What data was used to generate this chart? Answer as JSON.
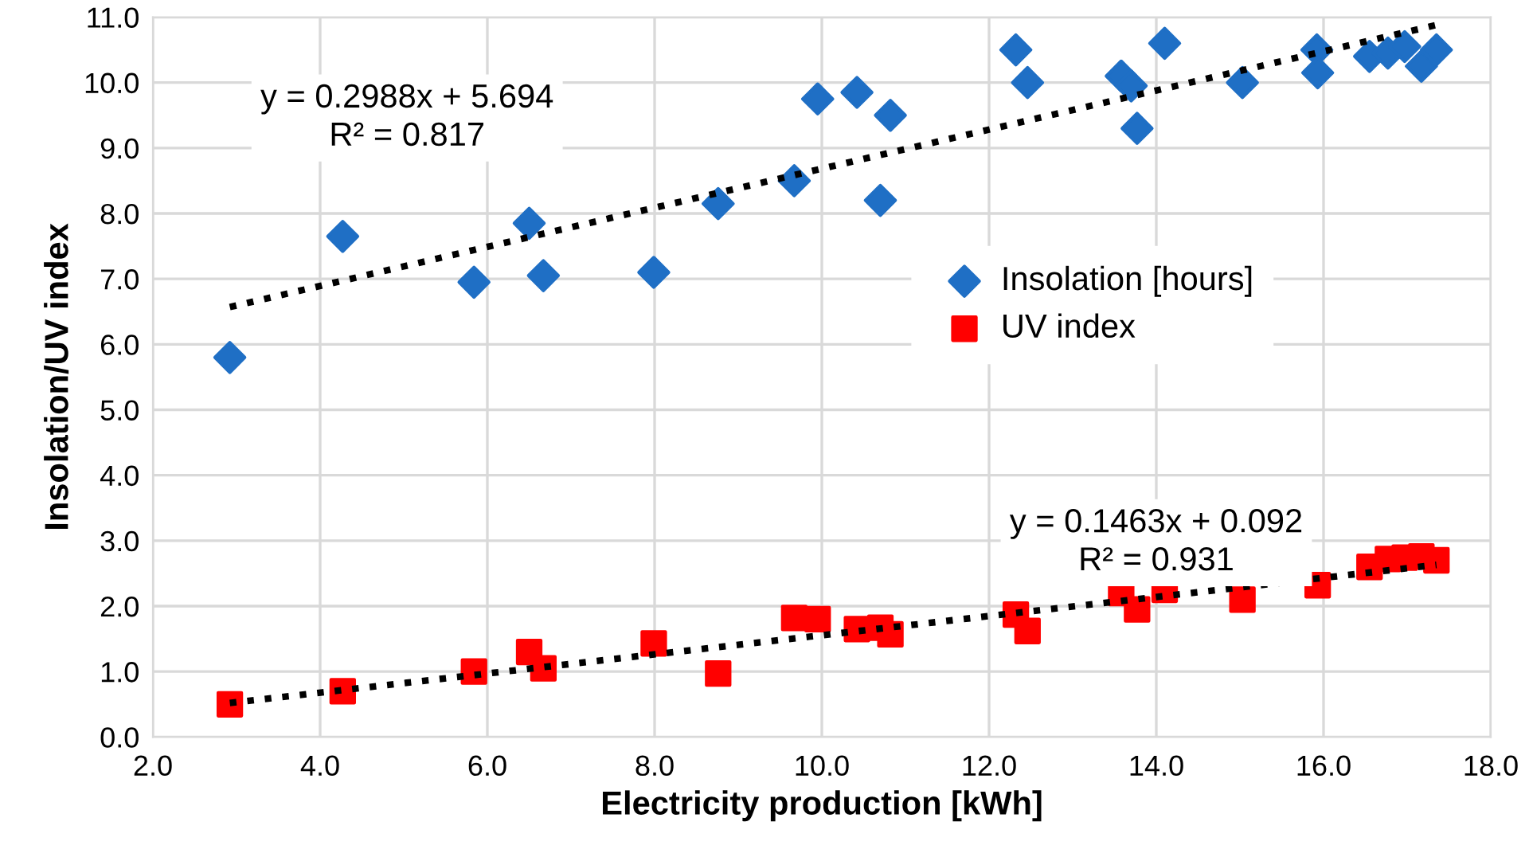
{
  "chart_data": {
    "type": "scatter",
    "xlabel": "Electricity production [kWh]",
    "ylabel": "Insolation/UV index",
    "xlim": [
      2.0,
      18.0
    ],
    "xticks": [
      {
        "value": 2,
        "label": "2.0"
      },
      {
        "value": 4,
        "label": "4.0"
      },
      {
        "value": 6,
        "label": "6.0"
      },
      {
        "value": 8,
        "label": "8.0"
      },
      {
        "value": 10,
        "label": "10.0"
      },
      {
        "value": 12,
        "label": "12.0"
      },
      {
        "value": 14,
        "label": "14.0"
      },
      {
        "value": 16,
        "label": "16.0"
      },
      {
        "value": 18,
        "label": "18.0"
      }
    ],
    "ylim": [
      0.0,
      11.0
    ],
    "yticks": [
      {
        "value": 0,
        "label": "0.0"
      },
      {
        "value": 1,
        "label": "1.0"
      },
      {
        "value": 2,
        "label": "2.0"
      },
      {
        "value": 3,
        "label": "3.0"
      },
      {
        "value": 4,
        "label": "4.0"
      },
      {
        "value": 5,
        "label": "5.0"
      },
      {
        "value": 6,
        "label": "6.0"
      },
      {
        "value": 7,
        "label": "7.0"
      },
      {
        "value": 8,
        "label": "8.0"
      },
      {
        "value": 9,
        "label": "9.0"
      },
      {
        "value": 10,
        "label": "10.0"
      },
      {
        "value": 11,
        "label": "11.0"
      }
    ],
    "grid": true,
    "legend": "right",
    "series": [
      {
        "name": "Insolation [hours]",
        "color": "#1f6fc5",
        "marker": "diamond",
        "x": [
          2.92,
          4.27,
          5.84,
          6.5,
          6.67,
          7.99,
          8.76,
          9.67,
          9.95,
          10.42,
          10.7,
          10.82,
          12.32,
          12.46,
          13.58,
          13.7,
          13.77,
          14.1,
          15.03,
          15.92,
          15.93,
          16.55,
          16.77,
          16.97,
          17.17,
          17.35
        ],
        "values": [
          5.8,
          7.65,
          6.95,
          7.85,
          7.05,
          7.1,
          8.15,
          8.5,
          9.75,
          9.85,
          8.2,
          9.5,
          10.5,
          10.0,
          10.1,
          9.95,
          9.3,
          10.6,
          10.0,
          10.5,
          10.15,
          10.4,
          10.45,
          10.55,
          10.25,
          10.5
        ]
      },
      {
        "name": "UV index",
        "color": "#ff0000",
        "marker": "square",
        "x": [
          2.92,
          4.27,
          5.84,
          6.5,
          6.67,
          7.99,
          8.76,
          9.67,
          9.95,
          10.42,
          10.7,
          10.82,
          12.32,
          12.46,
          13.58,
          13.77,
          14.1,
          15.03,
          15.92,
          15.93,
          16.55,
          16.77,
          16.97,
          17.17,
          17.35
        ],
        "values": [
          0.5,
          0.7,
          1.0,
          1.3,
          1.05,
          1.43,
          0.97,
          1.82,
          1.8,
          1.65,
          1.67,
          1.57,
          1.87,
          1.62,
          2.2,
          1.95,
          2.25,
          2.1,
          null,
          2.32,
          2.6,
          2.72,
          2.74,
          2.76,
          2.7
        ]
      },
      {
        "type": "line",
        "color": "#000000",
        "line_style": "dotted",
        "marker": "none",
        "x": [
          2.92,
          17.35
        ],
        "values": [
          6.57,
          10.88
        ]
      },
      {
        "type": "line",
        "color": "#000000",
        "line_style": "dotted",
        "marker": "none",
        "x": [
          2.92,
          17.35
        ],
        "values": [
          0.52,
          2.63
        ]
      }
    ],
    "annotations": [
      "y = 0.2988x + 5.694\nR² = 0.817",
      "y = 0.1463x + 0.092\nR² = 0.931"
    ]
  }
}
